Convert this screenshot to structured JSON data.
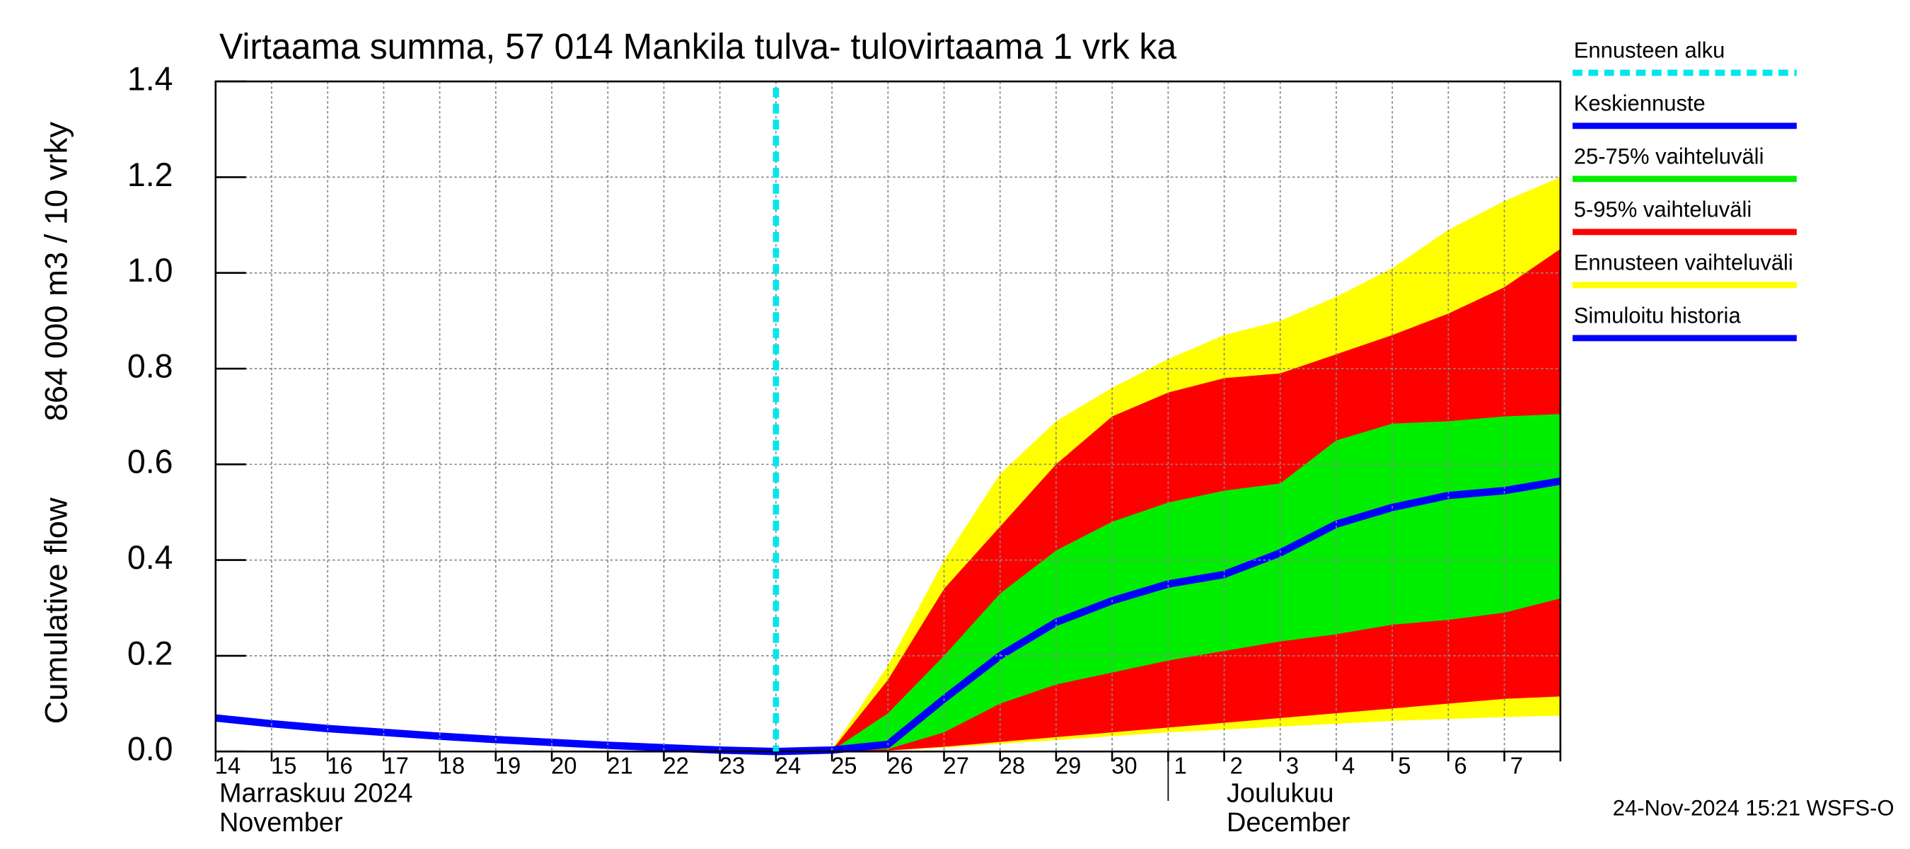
{
  "chart_data": {
    "type": "band",
    "title": "Virtaama summa, 57 014 Mankila tulva- tulovirtaama 1 vrk ka",
    "ylabel": [
      "Cumulative flow",
      "864 000 m3 / 10 vrky"
    ],
    "categories": [
      "14",
      "15",
      "16",
      "17",
      "18",
      "19",
      "20",
      "21",
      "22",
      "23",
      "24",
      "25",
      "26",
      "27",
      "28",
      "29",
      "30",
      "1",
      "2",
      "3",
      "4",
      "5",
      "6",
      "7",
      null
    ],
    "month_labels": [
      {
        "lines": [
          "Marraskuu 2024",
          "November"
        ],
        "at": 0
      },
      {
        "lines": [
          "Joulukuu",
          "December"
        ],
        "at": 17
      }
    ],
    "ylim": [
      0,
      1.4
    ],
    "yticks": [
      {
        "value": 0,
        "label": "0.0"
      },
      0.2,
      0.4,
      0.6,
      0.8,
      {
        "value": 1,
        "label": "1.0"
      },
      1.2,
      1.4
    ],
    "grid": true,
    "forecast_start": {
      "name": "Ennusteen alku",
      "color": "#00e5ee"
    },
    "series": [
      {
        "name": "Keskiennuste",
        "color": "#0000ff",
        "values": [
          null,
          null,
          null,
          null,
          null,
          null,
          null,
          null,
          null,
          null,
          0,
          0.003,
          0.015,
          0.11,
          0.2,
          0.27,
          0.315,
          0.35,
          0.37,
          0.415,
          0.475,
          0.51,
          0.535,
          0.545,
          0.565
        ]
      },
      {
        "name": "25-75% vaihteluväli",
        "color": "#00ee00",
        "upper": [
          null,
          null,
          null,
          null,
          null,
          null,
          null,
          null,
          null,
          null,
          0,
          0.002,
          0.08,
          0.2,
          0.33,
          0.42,
          0.48,
          0.52,
          0.545,
          0.56,
          0.65,
          0.685,
          0.69,
          0.7,
          0.705
        ],
        "lower": [
          null,
          null,
          null,
          null,
          null,
          null,
          null,
          null,
          null,
          null,
          0,
          0,
          0.005,
          0.04,
          0.1,
          0.14,
          0.165,
          0.19,
          0.21,
          0.23,
          0.245,
          0.265,
          0.275,
          0.29,
          0.32
        ]
      },
      {
        "name": "5-95% vaihteluväli",
        "color": "#ff0000",
        "upper": [
          null,
          null,
          null,
          null,
          null,
          null,
          null,
          null,
          null,
          null,
          0,
          0.003,
          0.15,
          0.34,
          0.47,
          0.6,
          0.7,
          0.75,
          0.78,
          0.79,
          0.83,
          0.87,
          0.915,
          0.97,
          1.05
        ],
        "lower": [
          null,
          null,
          null,
          null,
          null,
          null,
          null,
          null,
          null,
          null,
          0,
          0,
          0.002,
          0.01,
          0.02,
          0.03,
          0.04,
          0.05,
          0.06,
          0.07,
          0.08,
          0.09,
          0.1,
          0.11,
          0.115
        ]
      },
      {
        "name": "Ennusteen vaihteluväli",
        "color": "#ffff00",
        "upper": [
          null,
          null,
          null,
          null,
          null,
          null,
          null,
          null,
          null,
          null,
          0,
          0.005,
          0.18,
          0.4,
          0.58,
          0.69,
          0.76,
          0.82,
          0.87,
          0.9,
          0.95,
          1.01,
          1.09,
          1.15,
          1.2
        ],
        "lower": [
          null,
          null,
          null,
          null,
          null,
          null,
          null,
          null,
          null,
          null,
          0,
          0,
          0.002,
          0.008,
          0.016,
          0.024,
          0.032,
          0.04,
          0.046,
          0.052,
          0.058,
          0.064,
          0.068,
          0.072,
          0.075
        ]
      },
      {
        "name": "Simuloitu historia",
        "color": "#0000ff",
        "values": [
          0.07,
          0.058,
          0.048,
          0.04,
          0.032,
          0.025,
          0.019,
          0.013,
          0.008,
          0.003,
          0,
          null,
          null,
          null,
          null,
          null,
          null,
          null,
          null,
          null,
          null,
          null,
          null,
          null,
          null
        ]
      }
    ],
    "footer": "24-Nov-2024 15:21 WSFS-O"
  }
}
